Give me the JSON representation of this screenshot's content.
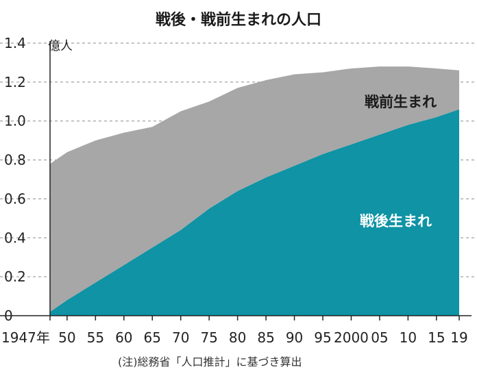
{
  "chart_data": {
    "type": "area",
    "stacked": true,
    "title": "戦後・戦前生まれの人口",
    "y_unit": "億人",
    "note": "(注)総務省「人口推計」に基づき算出",
    "ylim": [
      0,
      1.4
    ],
    "y_ticks": [
      0,
      0.2,
      0.4,
      0.6,
      0.8,
      1.0,
      1.2,
      1.4
    ],
    "y_tick_labels": [
      "0",
      "0.2",
      "0.4",
      "0.6",
      "0.8",
      "1.0",
      "1.2",
      "1.4"
    ],
    "xlim": [
      1947,
      2019
    ],
    "x_ticks": [
      1947,
      1950,
      1955,
      1960,
      1965,
      1970,
      1975,
      1980,
      1985,
      1990,
      1995,
      2000,
      2005,
      2010,
      2015,
      2019
    ],
    "x_tick_labels": [
      "1947年",
      "50",
      "55",
      "60",
      "65",
      "70",
      "75",
      "80",
      "85",
      "90",
      "95",
      "2000",
      "05",
      "10",
      "15",
      "19"
    ],
    "grid": true,
    "x": [
      1947,
      1950,
      1955,
      1960,
      1965,
      1970,
      1975,
      1980,
      1985,
      1990,
      1995,
      2000,
      2005,
      2010,
      2015,
      2019
    ],
    "series": [
      {
        "name": "戦後生まれ",
        "color": "#0f93a5",
        "values": [
          0.02,
          0.08,
          0.17,
          0.26,
          0.35,
          0.44,
          0.55,
          0.64,
          0.71,
          0.77,
          0.83,
          0.88,
          0.93,
          0.98,
          1.02,
          1.06
        ]
      },
      {
        "name": "戦前生まれ",
        "color": "#a7a7a7",
        "values": [
          0.76,
          0.76,
          0.73,
          0.68,
          0.62,
          0.61,
          0.55,
          0.53,
          0.5,
          0.47,
          0.42,
          0.39,
          0.35,
          0.3,
          0.25,
          0.2
        ]
      }
    ]
  }
}
